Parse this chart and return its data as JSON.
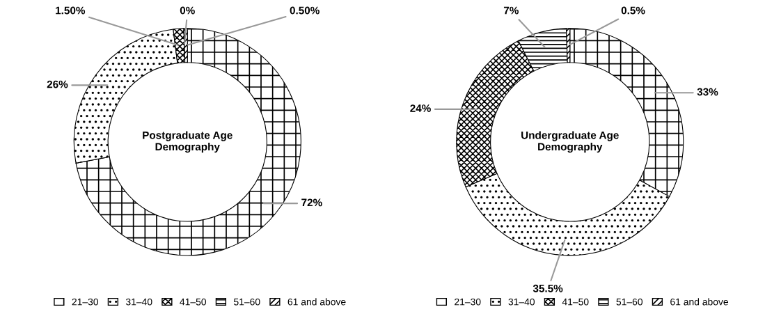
{
  "chart_data": [
    {
      "type": "donut",
      "title": "Postgraduate Age\nDemography",
      "categories": [
        "21–30",
        "31–40",
        "41–50",
        "51–60",
        "61 and above"
      ],
      "values": [
        72,
        26,
        1.5,
        0,
        0.5
      ],
      "value_labels": [
        "72%",
        "26%",
        "1.50%",
        "0%",
        "0.50%"
      ],
      "colors": [
        "#000000",
        "#000000",
        "#000000",
        "#000000",
        "#000000"
      ],
      "legend": "bottom"
    },
    {
      "type": "donut",
      "title": "Undergraduate Age\nDemography",
      "categories": [
        "21–30",
        "31–40",
        "41–50",
        "51–60",
        "61 and above"
      ],
      "values": [
        33,
        35.5,
        24,
        7,
        0.5
      ],
      "value_labels": [
        "33%",
        "35.5%",
        "24%",
        "7%",
        "0.5%"
      ],
      "colors": [
        "#000000",
        "#000000",
        "#000000",
        "#000000",
        "#000000"
      ],
      "legend": "bottom"
    }
  ]
}
